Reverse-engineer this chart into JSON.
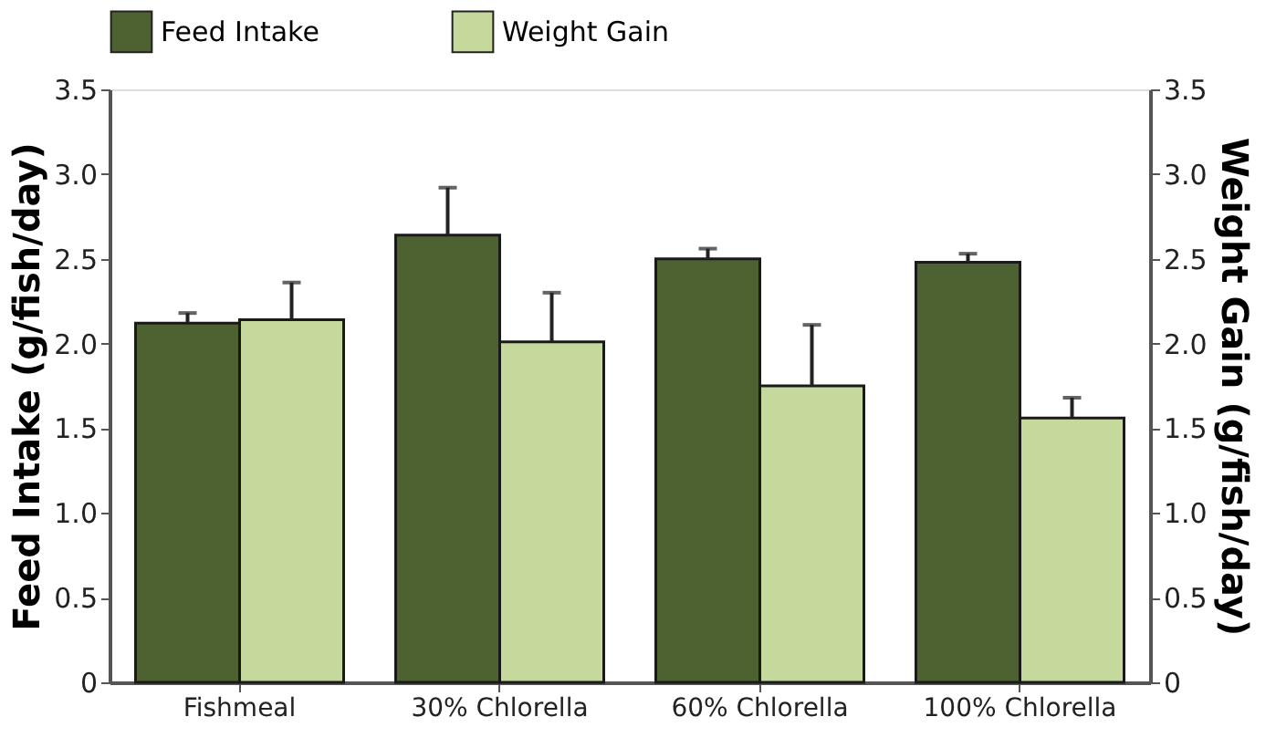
{
  "chart_data": {
    "type": "bar",
    "categories": [
      "Fishmeal",
      "30% Chlorella",
      "60% Chlorella",
      "100% Chlorella"
    ],
    "ylabel": "Feed Intake (g/fish/day)",
    "y2label": "Weight Gain (g/fish/day)",
    "series": [
      {
        "name": "Feed Intake",
        "color": "#4d6230",
        "values": [
          2.12,
          2.64,
          2.5,
          2.48
        ],
        "errors": [
          0.06,
          0.28,
          0.06,
          0.05
        ]
      },
      {
        "name": "Weight Gain",
        "color": "#c5d99c",
        "axis": "y2",
        "values": [
          2.14,
          2.01,
          1.75,
          1.56
        ],
        "errors": [
          0.22,
          0.29,
          0.36,
          0.12
        ]
      }
    ],
    "ylim": [
      0,
      3.5
    ],
    "yticks": [
      0,
      {
        "value": 0.5,
        "label": "0.5"
      },
      {
        "value": 1,
        "label": "1.0"
      },
      {
        "value": 1.5,
        "label": "1.5"
      },
      {
        "value": 2,
        "label": "2.0"
      },
      {
        "value": 2.5,
        "label": "2.5"
      },
      {
        "value": 3,
        "label": "3.0"
      },
      {
        "value": 3.5,
        "label": "3.5"
      }
    ],
    "y2lim": [
      0,
      3.5
    ],
    "y2ticks": [
      0,
      {
        "value": 0.5,
        "label": "0.5"
      },
      {
        "value": 1,
        "label": "1.0"
      },
      {
        "value": 1.5,
        "label": "1.5"
      },
      {
        "value": 2,
        "label": "2.0"
      },
      {
        "value": 2.5,
        "label": "2.5"
      },
      {
        "value": 3,
        "label": "3.0"
      },
      {
        "value": 3.5,
        "label": "3.5"
      }
    ],
    "legend": "top",
    "grid": false
  }
}
